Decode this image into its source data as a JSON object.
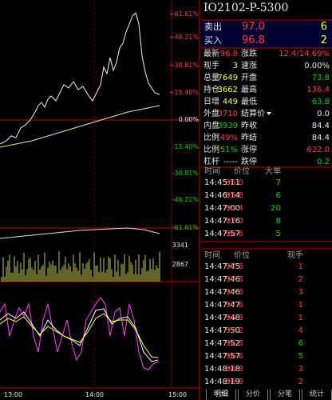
{
  "header": {
    "title": "IO2102-P-5300"
  },
  "quote": {
    "ask": {
      "label": "卖出",
      "price": "97.0",
      "volume": "6"
    },
    "bid": {
      "label": "买入",
      "price": "96.8",
      "volume": "2"
    }
  },
  "stats": {
    "rows": [
      [
        "最新",
        "96.8",
        "涨跌",
        "12.4/14.69%"
      ],
      [
        "现手",
        "3",
        "速涨",
        "0.00%"
      ],
      [
        "总量",
        "7649",
        "开盘",
        "73.8"
      ],
      [
        "持仓",
        "3662",
        "最高",
        "136.4"
      ],
      [
        "日增",
        "449",
        "最低",
        "63.8"
      ],
      [
        "外盘",
        "3710",
        "结算价",
        "0.0"
      ],
      [
        "内盘",
        "3939",
        "昨收",
        "84.4"
      ],
      [
        "比例",
        "49%",
        "昨结",
        "84.4"
      ],
      [
        "比例",
        "51%",
        "涨停",
        "622.0"
      ],
      [
        "杠杆",
        "-----",
        "跌停",
        "0.2"
      ]
    ]
  },
  "chart": {
    "price_labels": [
      "+61.61%",
      "+46.21%",
      "+30.81%",
      "+15.40%",
      "0.00%",
      "-15.40%",
      "-30.81%",
      "-46.21%",
      "-61.61%"
    ],
    "volume_labels": [
      "3341",
      "2867"
    ],
    "time_labels": [
      "13:00",
      "14:00",
      "15:00"
    ]
  },
  "ticks_large": {
    "headers": [
      "时间",
      "价位",
      "大单"
    ],
    "rows": [
      [
        "14:45:11",
        "96.0",
        "7"
      ],
      [
        "14:46:14",
        "95.8",
        "6"
      ],
      [
        "14:47:00",
        "95.4",
        "20"
      ],
      [
        "14:47:16",
        "97.0",
        "8"
      ],
      [
        "14:47:57",
        "96.6",
        "5"
      ]
    ]
  },
  "ticks": {
    "headers": [
      "时间",
      "价位",
      "现手"
    ],
    "rows": [
      [
        "14:47:45",
        "97.6",
        "1"
      ],
      [
        "14:47:46",
        "97.6",
        "2"
      ],
      [
        "14:47:46",
        "97.6",
        "3"
      ],
      [
        "14:47:47",
        "97.6",
        "1"
      ],
      [
        "14:47:48",
        "96.8",
        "1"
      ],
      [
        "14:47:50",
        "97.2",
        "4"
      ],
      [
        "14:47:52",
        "96.8",
        "6"
      ],
      [
        "14:47:57",
        "96.6",
        "5"
      ],
      [
        "14:48:18",
        "96.8",
        "3"
      ],
      [
        "14:48:19",
        "96.8",
        "2"
      ]
    ]
  },
  "tabs": [
    "明细",
    "分价",
    "分笔",
    "统计"
  ]
}
